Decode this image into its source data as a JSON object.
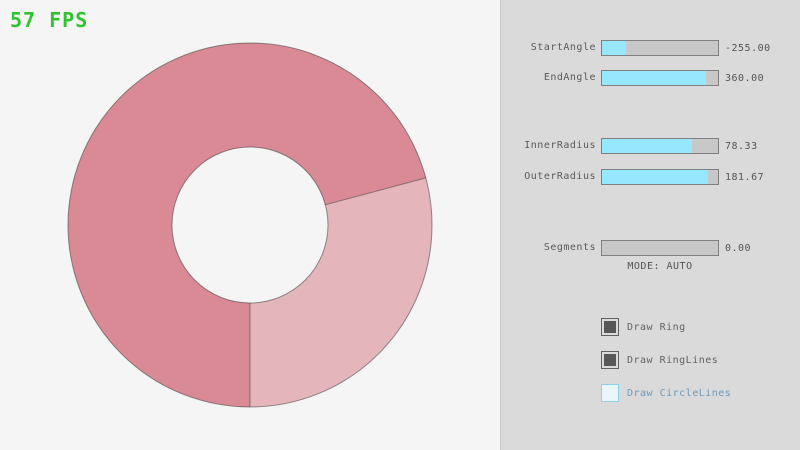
{
  "fps_label": "57 FPS",
  "fps_color": "#2fc42f",
  "ring": {
    "dark_color": "#d98a95",
    "light_color": "#e5b5bc",
    "outline_color": "rgba(45,45,45,0.5)"
  },
  "panel": {
    "accent_color": "#97e8ff",
    "sliders": [
      {
        "label": "StartAngle",
        "value": "-255.00",
        "fill_pct": 21
      },
      {
        "label": "EndAngle",
        "value": "360.00",
        "fill_pct": 90
      },
      {
        "label": "InnerRadius",
        "value": "78.33",
        "fill_pct": 78
      },
      {
        "label": "OuterRadius",
        "value": "181.67",
        "fill_pct": 91
      },
      {
        "label": "Segments",
        "value": "0.00",
        "fill_pct": 0
      }
    ],
    "mode_label": "MODE: AUTO",
    "checkboxes": [
      {
        "label": "Draw Ring",
        "checked": true,
        "focused": false
      },
      {
        "label": "Draw RingLines",
        "checked": true,
        "focused": false
      },
      {
        "label": "Draw CircleLines",
        "checked": false,
        "focused": true
      }
    ]
  }
}
